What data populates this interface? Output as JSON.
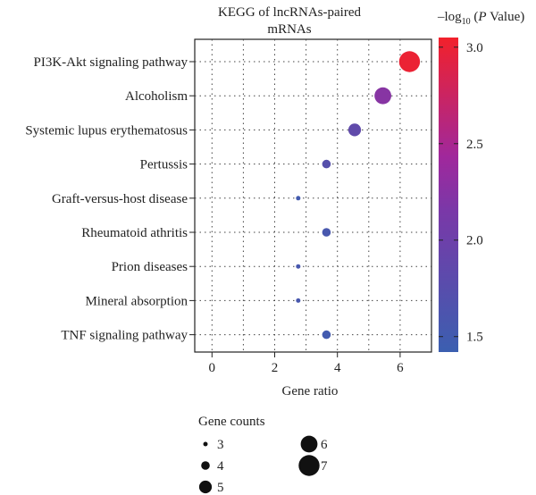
{
  "chart_data": {
    "type": "scatter",
    "title": "KEGG of lncRNAs-paired mRNAs",
    "xlabel": "Gene ratio",
    "xlim": [
      -0.55,
      7.0
    ],
    "x_ticks": [
      0,
      2,
      4,
      6
    ],
    "categories": [
      "PI3K-Akt signaling pathway",
      "Alcoholism",
      "Systemic lupus erythematosus",
      "Pertussis",
      "Graft-versus-host disease",
      "Rheumatoid athritis",
      "Prion diseases",
      "Mineral absorption",
      "TNF signaling pathway"
    ],
    "points": [
      {
        "category": "PI3K-Akt signaling pathway",
        "x": 6.3,
        "count": 7,
        "neg_log10_p": 3.0
      },
      {
        "category": "Alcoholism",
        "x": 5.45,
        "count": 6,
        "neg_log10_p": 2.2
      },
      {
        "category": "Systemic lupus erythematosus",
        "x": 4.55,
        "count": 5,
        "neg_log10_p": 1.8
      },
      {
        "category": "Pertussis",
        "x": 3.65,
        "count": 4,
        "neg_log10_p": 1.7
      },
      {
        "category": "Graft-versus-host disease",
        "x": 2.75,
        "count": 3,
        "neg_log10_p": 1.5
      },
      {
        "category": "Rheumatoid athritis",
        "x": 3.65,
        "count": 4,
        "neg_log10_p": 1.55
      },
      {
        "category": "Prion diseases",
        "x": 2.75,
        "count": 3,
        "neg_log10_p": 1.55
      },
      {
        "category": "Mineral absorption",
        "x": 2.75,
        "count": 3,
        "neg_log10_p": 1.55
      },
      {
        "category": "TNF signaling pathway",
        "x": 3.65,
        "count": 4,
        "neg_log10_p": 1.5
      }
    ],
    "colorbar": {
      "label_prefix": "–log",
      "label_sub": "10",
      "label_open": " (",
      "label_italic": "P",
      "label_suffix": " Value)",
      "range": [
        1.42,
        3.05
      ],
      "ticks": [
        1.5,
        2.0,
        2.5,
        3.0
      ],
      "tick_labels": [
        "1.5",
        "2.0",
        "2.5",
        "3.0"
      ],
      "color_low": "#3b5fb0",
      "color_mid": "#9a2aa0",
      "color_high": "#f2212b"
    },
    "size_legend": {
      "title": "Gene counts",
      "entries": [
        {
          "count": 3,
          "label": "3"
        },
        {
          "count": 4,
          "label": "4"
        },
        {
          "count": 5,
          "label": "5"
        },
        {
          "count": 6,
          "label": "6"
        },
        {
          "count": 7,
          "label": "7"
        }
      ]
    },
    "grid": true
  }
}
